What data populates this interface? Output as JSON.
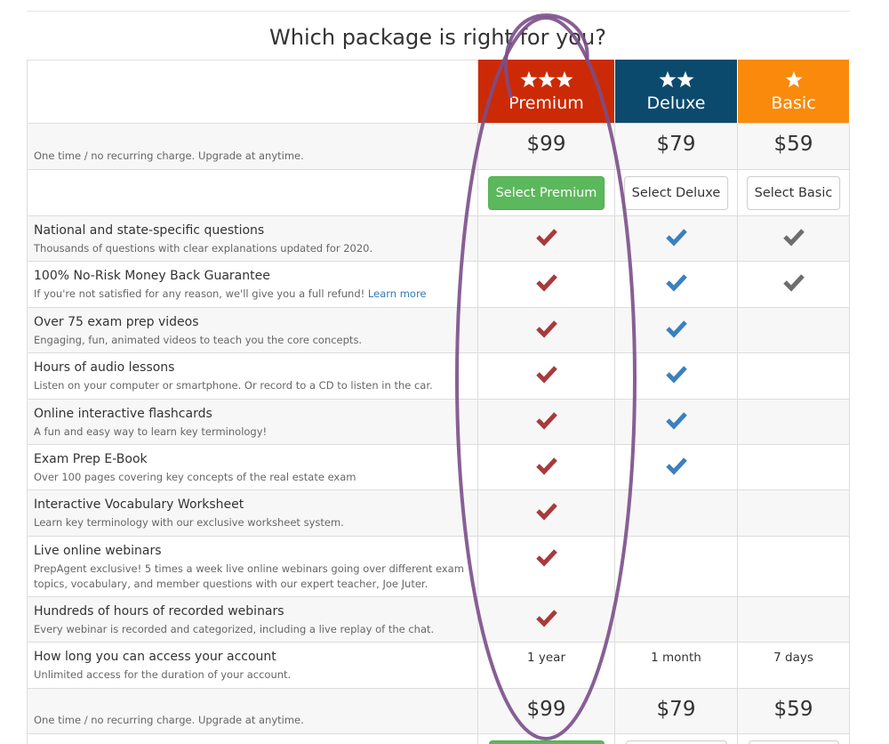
{
  "title": "Which package is right for you?",
  "price_note": "One time / no recurring charge. Upgrade at anytime.",
  "plans": [
    {
      "name": "Premium",
      "stars": 3,
      "color": "#cc2a06",
      "check_color": "#a83a3c",
      "price": "$99",
      "button": "Select Premium",
      "primary": true
    },
    {
      "name": "Deluxe",
      "stars": 2,
      "color": "#0c4a6d",
      "check_color": "#3b80c0",
      "price": "$79",
      "button": "Select Deluxe",
      "primary": false
    },
    {
      "name": "Basic",
      "stars": 1,
      "color": "#f98a0c",
      "check_color": "#6e6e6e",
      "price": "$59",
      "button": "Select Basic",
      "primary": false
    }
  ],
  "features": [
    {
      "title": "National and state-specific questions",
      "desc": "Thousands of questions with clear explanations updated for 2020.",
      "checks": [
        true,
        true,
        true
      ]
    },
    {
      "title": "100% No-Risk Money Back Guarantee",
      "desc": "If you're not satisfied for any reason, we'll give you a full refund!",
      "link": "Learn more",
      "checks": [
        true,
        true,
        true
      ]
    },
    {
      "title": "Over 75 exam prep videos",
      "desc": "Engaging, fun, animated videos to teach you the core concepts.",
      "checks": [
        true,
        true,
        false
      ]
    },
    {
      "title": "Hours of audio lessons",
      "desc": "Listen on your computer or smartphone. Or record to a CD to listen in the car.",
      "checks": [
        true,
        true,
        false
      ]
    },
    {
      "title": "Online interactive flashcards",
      "desc": "A fun and easy way to learn key terminology!",
      "checks": [
        true,
        true,
        false
      ]
    },
    {
      "title": "Exam Prep E-Book",
      "desc": "Over 100 pages covering key concepts of the real estate exam",
      "checks": [
        true,
        true,
        false
      ]
    },
    {
      "title": "Interactive Vocabulary Worksheet",
      "desc": "Learn key terminology with our exclusive worksheet system.",
      "checks": [
        true,
        false,
        false
      ]
    },
    {
      "title": "Live online webinars",
      "desc": "PrepAgent exclusive! 5 times a week live online webinars going over different exam topics, vocabulary, and member questions with our expert teacher, Joe Juter.",
      "checks": [
        true,
        false,
        false
      ]
    },
    {
      "title": "Hundreds of hours of recorded webinars",
      "desc": "Every webinar is recorded and categorized, including a live replay of the chat.",
      "checks": [
        true,
        false,
        false
      ]
    }
  ],
  "access": {
    "title": "How long you can access your account",
    "desc": "Unlimited access for the duration of your account.",
    "values": [
      "1 year",
      "1 month",
      "7 days"
    ]
  }
}
